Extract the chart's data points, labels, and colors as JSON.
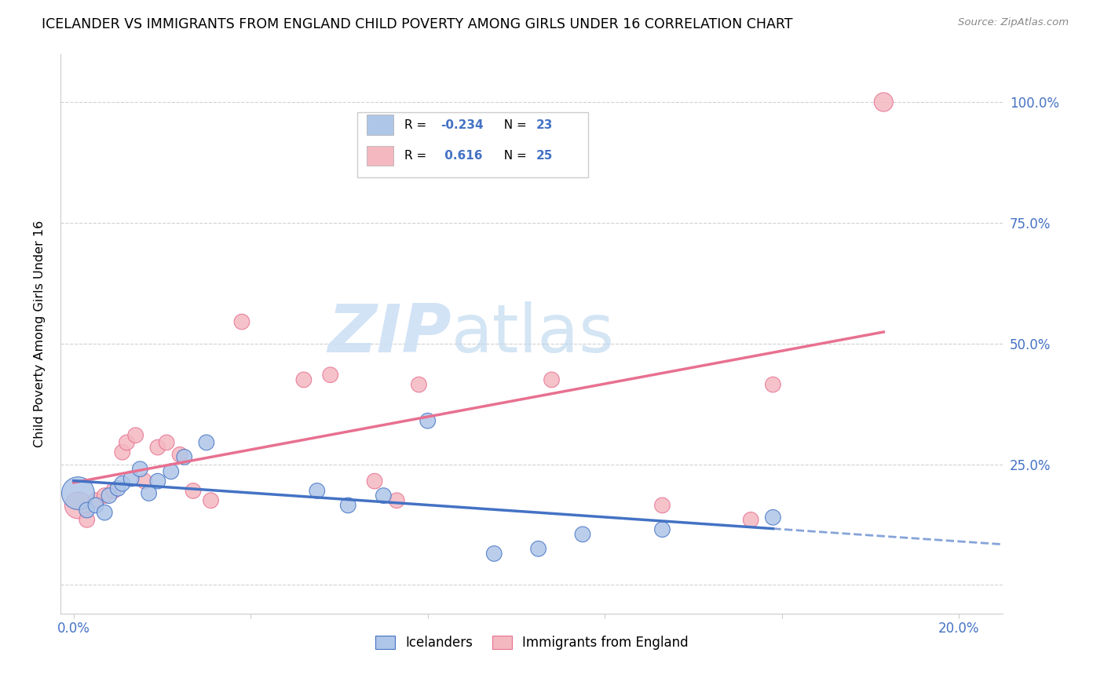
{
  "title": "ICELANDER VS IMMIGRANTS FROM ENGLAND CHILD POVERTY AMONG GIRLS UNDER 16 CORRELATION CHART",
  "source": "Source: ZipAtlas.com",
  "ylabel": "Child Poverty Among Girls Under 16",
  "ytick_positions": [
    0.0,
    0.25,
    0.5,
    0.75,
    1.0
  ],
  "ytick_labels": [
    "",
    "25.0%",
    "50.0%",
    "75.0%",
    "100.0%"
  ],
  "icelanders_color": "#aec6e8",
  "immigrants_color": "#f4b8c1",
  "trendline_blue": "#4472c4",
  "trendline_pink": "#e87090",
  "icelanders_x": [
    0.001,
    0.003,
    0.005,
    0.007,
    0.008,
    0.01,
    0.011,
    0.013,
    0.015,
    0.017,
    0.019,
    0.022,
    0.025,
    0.03,
    0.055,
    0.062,
    0.07,
    0.08,
    0.095,
    0.105,
    0.115,
    0.133,
    0.158
  ],
  "icelanders_y": [
    0.19,
    0.155,
    0.165,
    0.15,
    0.185,
    0.2,
    0.21,
    0.22,
    0.24,
    0.19,
    0.215,
    0.235,
    0.265,
    0.295,
    0.195,
    0.165,
    0.185,
    0.34,
    0.065,
    0.075,
    0.105,
    0.115,
    0.14
  ],
  "immigrants_x": [
    0.001,
    0.003,
    0.005,
    0.007,
    0.009,
    0.011,
    0.012,
    0.014,
    0.016,
    0.019,
    0.021,
    0.024,
    0.027,
    0.031,
    0.038,
    0.052,
    0.058,
    0.068,
    0.073,
    0.078,
    0.108,
    0.133,
    0.153,
    0.158,
    0.183
  ],
  "immigrants_y": [
    0.165,
    0.135,
    0.175,
    0.185,
    0.195,
    0.275,
    0.295,
    0.31,
    0.215,
    0.285,
    0.295,
    0.27,
    0.195,
    0.175,
    0.545,
    0.425,
    0.435,
    0.215,
    0.175,
    0.415,
    0.425,
    0.165,
    0.135,
    0.415,
    1.0
  ],
  "icelanders_sizes": [
    900,
    200,
    200,
    200,
    200,
    200,
    200,
    200,
    200,
    200,
    200,
    200,
    200,
    200,
    200,
    200,
    200,
    200,
    200,
    200,
    200,
    200,
    200
  ],
  "immigrants_sizes": [
    600,
    200,
    200,
    200,
    200,
    200,
    200,
    200,
    200,
    200,
    200,
    200,
    200,
    200,
    200,
    200,
    200,
    200,
    200,
    200,
    200,
    200,
    200,
    200,
    300
  ],
  "xlim": [
    -0.003,
    0.21
  ],
  "ylim": [
    -0.06,
    1.1
  ]
}
